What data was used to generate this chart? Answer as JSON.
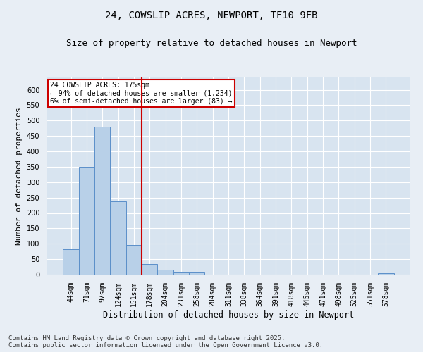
{
  "title1": "24, COWSLIP ACRES, NEWPORT, TF10 9FB",
  "title2": "Size of property relative to detached houses in Newport",
  "xlabel": "Distribution of detached houses by size in Newport",
  "ylabel": "Number of detached properties",
  "bar_labels": [
    "44sqm",
    "71sqm",
    "97sqm",
    "124sqm",
    "151sqm",
    "178sqm",
    "204sqm",
    "231sqm",
    "258sqm",
    "284sqm",
    "311sqm",
    "338sqm",
    "364sqm",
    "391sqm",
    "418sqm",
    "445sqm",
    "471sqm",
    "498sqm",
    "525sqm",
    "551sqm",
    "578sqm"
  ],
  "bar_values": [
    83,
    350,
    480,
    237,
    96,
    35,
    15,
    7,
    7,
    0,
    0,
    0,
    0,
    0,
    0,
    0,
    0,
    0,
    0,
    0,
    5
  ],
  "bar_color": "#b8d0e8",
  "bar_edge_color": "#5b8fc9",
  "vline_color": "#cc0000",
  "annotation_box_text": "24 COWSLIP ACRES: 175sqm\n← 94% of detached houses are smaller (1,234)\n6% of semi-detached houses are larger (83) →",
  "annotation_box_color": "#cc0000",
  "ylim": [
    0,
    640
  ],
  "yticks": [
    0,
    50,
    100,
    150,
    200,
    250,
    300,
    350,
    400,
    450,
    500,
    550,
    600
  ],
  "background_color": "#e8eef5",
  "plot_bg_color": "#d8e4f0",
  "grid_color": "#ffffff",
  "footer_text": "Contains HM Land Registry data © Crown copyright and database right 2025.\nContains public sector information licensed under the Open Government Licence v3.0.",
  "title1_fontsize": 10,
  "title2_fontsize": 9,
  "xlabel_fontsize": 8.5,
  "ylabel_fontsize": 8,
  "tick_fontsize": 7,
  "footer_fontsize": 6.5,
  "annotation_fontsize": 7
}
